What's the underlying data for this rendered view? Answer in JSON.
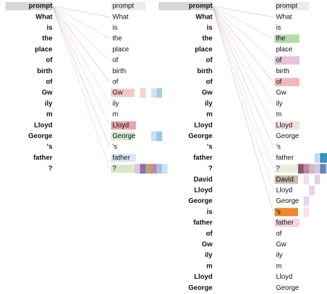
{
  "panels": [
    {
      "left_tokens": [
        "prompt",
        "What",
        "is",
        "the",
        "place",
        "of",
        "birth",
        "of",
        "Gw",
        "ily",
        "m",
        "Lloyd",
        "George",
        "'s",
        "father",
        "?"
      ],
      "right_tokens": [
        "prompt",
        "What",
        "is",
        "the",
        "place",
        "of",
        "birth",
        "of",
        "Gw",
        "ily",
        "m",
        "Lloyd",
        "George",
        "'s",
        "father",
        "?"
      ]
    },
    {
      "left_tokens": [
        "prompt",
        "What",
        "is",
        "the",
        "place",
        "of",
        "birth",
        "of",
        "Gw",
        "ily",
        "m",
        "Lloyd",
        "George",
        "'s",
        "father",
        "?",
        "David",
        "Lloyd",
        "George",
        "is",
        "father",
        "of",
        "Gw",
        "ily",
        "m",
        "Lloyd",
        "George"
      ],
      "right_tokens": [
        "prompt",
        "What",
        "is",
        "the",
        "place",
        "of",
        "birth",
        "of",
        "Gw",
        "ily",
        "m",
        "Lloyd",
        "George",
        "'s",
        "father",
        "?",
        "David",
        "Lloyd",
        "George",
        "'s",
        "father",
        "of",
        "Gw",
        "ily",
        "m",
        "Lloyd",
        "George"
      ]
    }
  ]
}
